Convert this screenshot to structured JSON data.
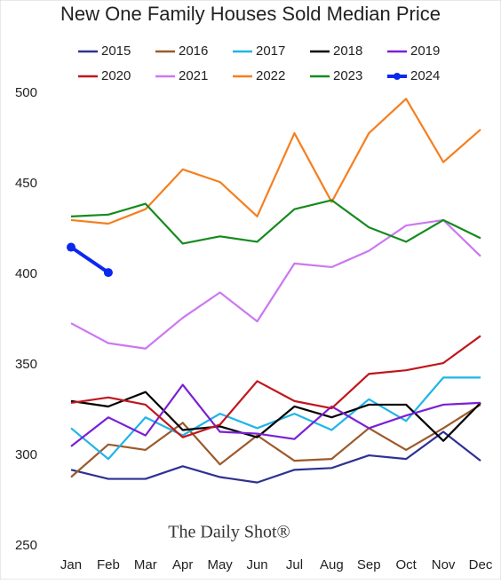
{
  "chart_data": {
    "type": "line",
    "title": "New One Family Houses Sold Median Price",
    "annotation": "The Daily Shot®",
    "categories": [
      "Jan",
      "Feb",
      "Mar",
      "Apr",
      "May",
      "Jun",
      "Jul",
      "Aug",
      "Sep",
      "Oct",
      "Nov",
      "Dec"
    ],
    "ylim": [
      250,
      505
    ],
    "yticks": [
      250,
      300,
      350,
      400,
      450,
      500
    ],
    "grid": false,
    "legend": "top",
    "series": [
      {
        "name": "2015",
        "color": "#2e3192",
        "values": [
          292,
          287,
          287,
          294,
          288,
          285,
          292,
          293,
          300,
          298,
          313,
          297
        ]
      },
      {
        "name": "2016",
        "color": "#9c5a2a",
        "values": [
          288,
          306,
          303,
          318,
          295,
          311,
          297,
          298,
          315,
          303,
          315,
          328
        ]
      },
      {
        "name": "2017",
        "color": "#1fb5e8",
        "values": [
          315,
          298,
          321,
          311,
          323,
          315,
          323,
          314,
          331,
          319,
          343,
          343
        ]
      },
      {
        "name": "2018",
        "color": "#000000",
        "values": [
          330,
          327,
          335,
          314,
          316,
          310,
          327,
          321,
          328,
          328,
          308,
          329
        ]
      },
      {
        "name": "2019",
        "color": "#7a1fd6",
        "values": [
          305,
          321,
          311,
          339,
          313,
          312,
          309,
          327,
          315,
          322,
          328,
          329
        ]
      },
      {
        "name": "2020",
        "color": "#c0161c",
        "values": [
          329,
          332,
          328,
          310,
          317,
          341,
          330,
          326,
          345,
          347,
          351,
          366
        ]
      },
      {
        "name": "2021",
        "color": "#cc77f2",
        "values": [
          373,
          362,
          359,
          376,
          390,
          374,
          406,
          404,
          413,
          427,
          430,
          410
        ]
      },
      {
        "name": "2022",
        "color": "#f57f1f",
        "values": [
          430,
          428,
          436,
          458,
          451,
          432,
          478,
          440,
          478,
          497,
          462,
          480
        ]
      },
      {
        "name": "2023",
        "color": "#168a1e",
        "values": [
          432,
          433,
          439,
          417,
          421,
          418,
          436,
          441,
          426,
          418,
          430,
          420
        ]
      },
      {
        "name": "2024",
        "color": "#0a28f0",
        "markers": true,
        "values": [
          415,
          401,
          null,
          null,
          null,
          null,
          null,
          null,
          null,
          null,
          null,
          null
        ]
      }
    ]
  }
}
